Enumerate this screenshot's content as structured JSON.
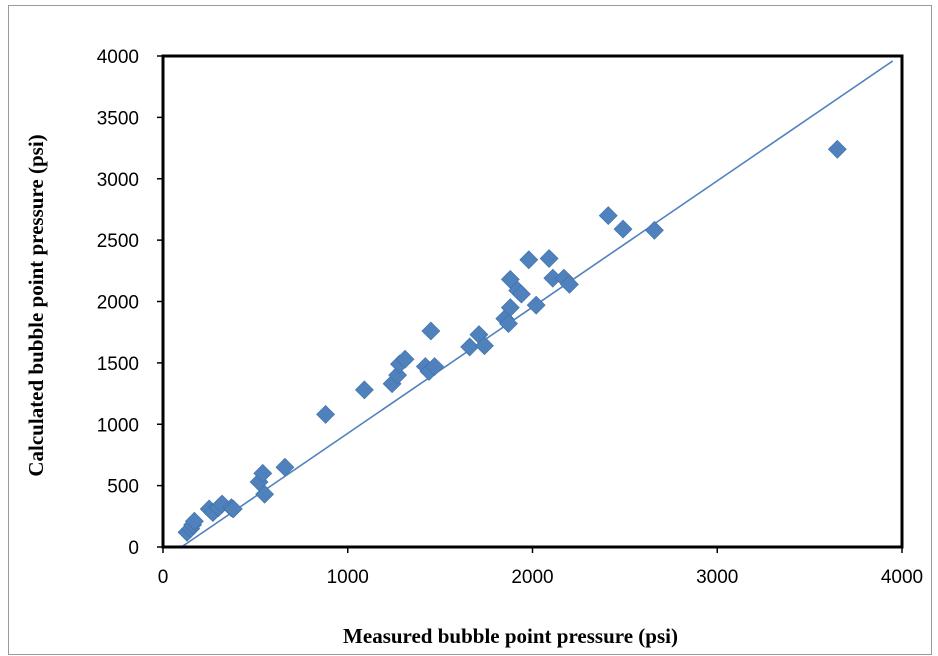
{
  "chart_data": {
    "type": "scatter",
    "title": "",
    "xlabel": "Measured bubble point pressure (psi)",
    "ylabel": "Calculated bubble point pressure (psi)",
    "xlim": [
      0,
      4000
    ],
    "ylim": [
      0,
      4000
    ],
    "x_ticks": [
      0,
      1000,
      2000,
      3000,
      4000
    ],
    "y_ticks": [
      0,
      500,
      1000,
      1500,
      2000,
      2500,
      3000,
      3500,
      4000
    ],
    "grid": false,
    "legend": "none",
    "marker": "diamond",
    "marker_color": "#4f81bd",
    "line_color": "#4f81bd",
    "reference_line": {
      "label": "",
      "x": [
        100,
        3950
      ],
      "y": [
        0,
        3960
      ]
    },
    "series": [
      {
        "name": "",
        "points": [
          [
            130,
            120
          ],
          [
            150,
            150
          ],
          [
            160,
            180
          ],
          [
            170,
            210
          ],
          [
            250,
            310
          ],
          [
            270,
            280
          ],
          [
            300,
            320
          ],
          [
            320,
            350
          ],
          [
            370,
            320
          ],
          [
            380,
            310
          ],
          [
            520,
            530
          ],
          [
            540,
            600
          ],
          [
            550,
            430
          ],
          [
            660,
            650
          ],
          [
            880,
            1080
          ],
          [
            1090,
            1280
          ],
          [
            1240,
            1330
          ],
          [
            1270,
            1400
          ],
          [
            1280,
            1490
          ],
          [
            1310,
            1530
          ],
          [
            1420,
            1470
          ],
          [
            1440,
            1430
          ],
          [
            1450,
            1760
          ],
          [
            1470,
            1470
          ],
          [
            1660,
            1630
          ],
          [
            1710,
            1730
          ],
          [
            1740,
            1640
          ],
          [
            1850,
            1860
          ],
          [
            1870,
            1820
          ],
          [
            1880,
            1950
          ],
          [
            1880,
            2180
          ],
          [
            1920,
            2090
          ],
          [
            1940,
            2060
          ],
          [
            1980,
            2340
          ],
          [
            2020,
            1970
          ],
          [
            2090,
            2350
          ],
          [
            2110,
            2190
          ],
          [
            2170,
            2190
          ],
          [
            2200,
            2140
          ],
          [
            2410,
            2700
          ],
          [
            2490,
            2590
          ],
          [
            2660,
            2580
          ],
          [
            3650,
            3240
          ]
        ]
      }
    ]
  }
}
